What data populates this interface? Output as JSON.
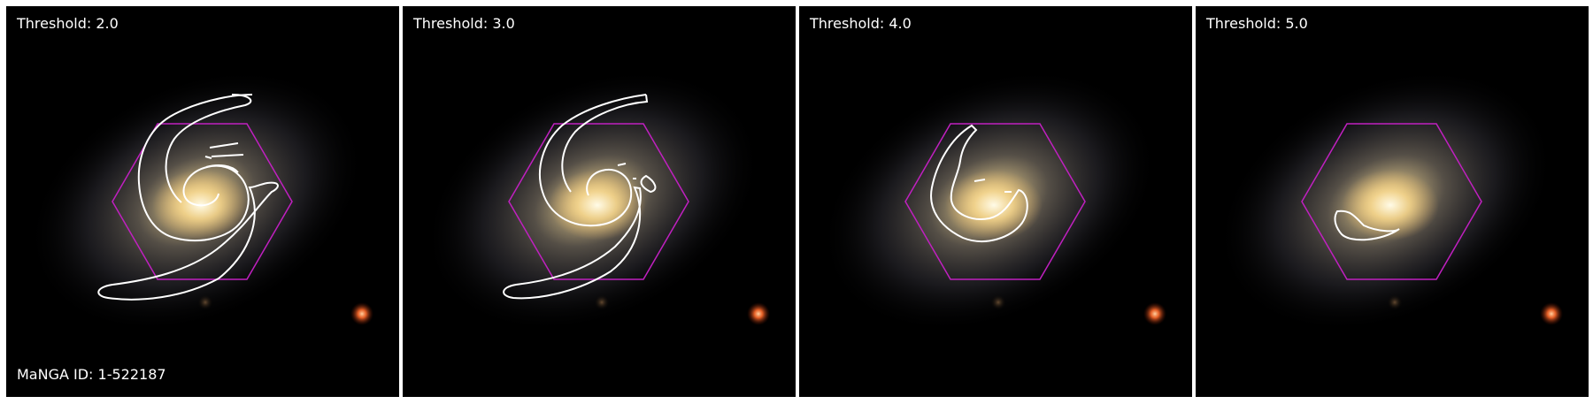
{
  "figure": {
    "manga_id": "MaNGA ID: 1-522187",
    "panels": [
      {
        "threshold_label": "Threshold: 2.0",
        "threshold": 2.0
      },
      {
        "threshold_label": "Threshold: 3.0",
        "threshold": 3.0
      },
      {
        "threshold_label": "Threshold: 4.0",
        "threshold": 4.0
      },
      {
        "threshold_label": "Threshold: 5.0",
        "threshold": 5.0
      }
    ]
  },
  "colors": {
    "background": "#000000",
    "contour": "#ffffff",
    "ifu_hexagon": "#c020c0",
    "galaxy_core": "#ffe6a0",
    "companion_star": "#ff6a2a"
  }
}
